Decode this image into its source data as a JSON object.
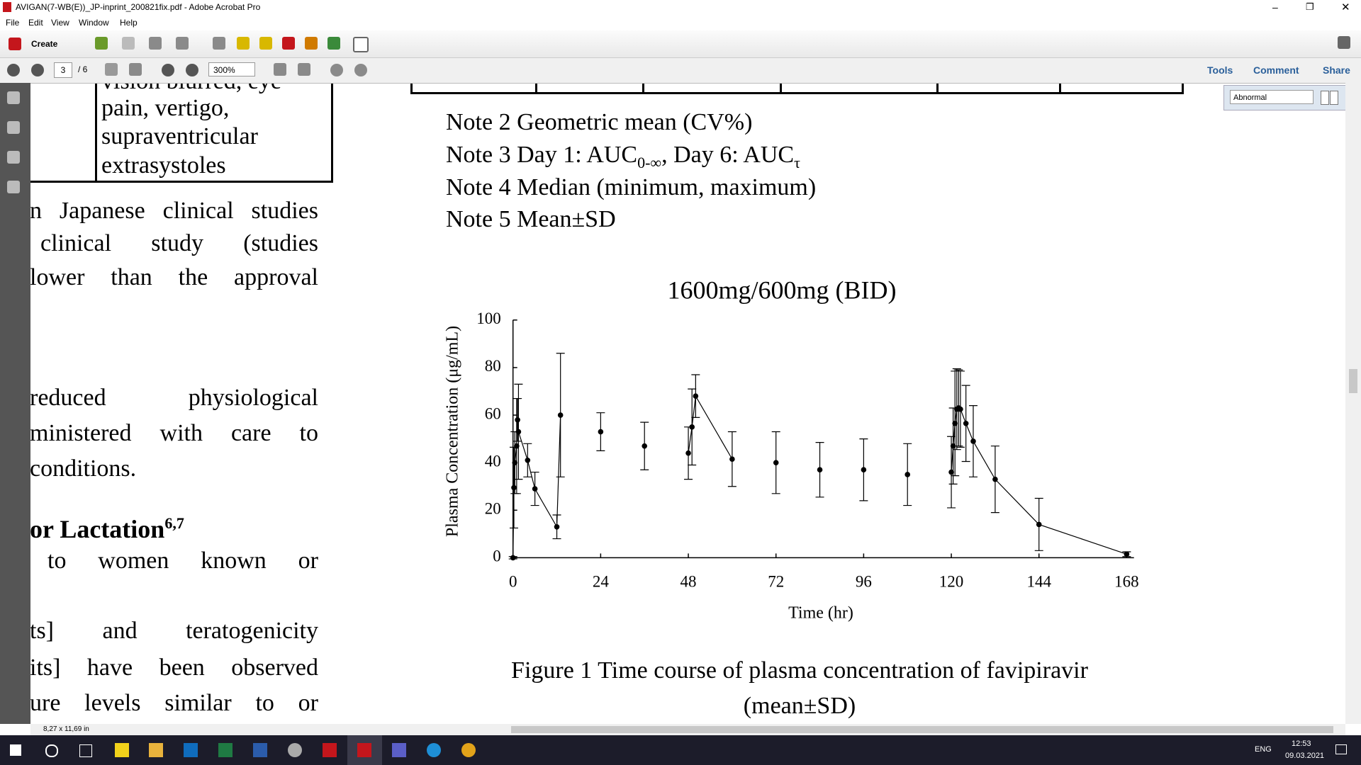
{
  "window": {
    "title": "AVIGAN(7-WB(E))_JP-inprint_200821fix.pdf - Adobe Acrobat Pro"
  },
  "menu": [
    "File",
    "Edit",
    "View",
    "Window",
    "Help"
  ],
  "toolbar": {
    "create": "Create",
    "page": "3",
    "page_total": "/ 6",
    "zoom": "300%",
    "tools": "Tools",
    "comment": "Comment",
    "share": "Share"
  },
  "find": {
    "query": "Abnormal"
  },
  "document": {
    "cell_lines": [
      "vision blurred, eye",
      "pain, vertigo,",
      "supraventricular",
      "extrasystoles"
    ],
    "left_lines": [
      "n Japanese clinical studies",
      "clinical study (studies",
      "lower than the approval",
      "reduced physiological",
      "ministered with care to",
      "conditions.",
      "to women known or",
      "ts] and teratogenicity",
      "its] have been observed",
      "ure levels similar to or"
    ],
    "heading": "or Lactation",
    "heading_ref": "6,7",
    "notes": [
      "Note 2 Geometric mean (CV%)",
      [
        "Note 3 Day 1: AUC",
        "0-∞",
        ", Day 6: AUC",
        "τ"
      ],
      "Note 4 Median (minimum, maximum)",
      "Note 5 Mean±SD"
    ],
    "caption": [
      "Figure 1 Time course of plasma concentration of favipiravir",
      "(mean±SD)"
    ]
  },
  "status": {
    "page_size": "8,27 x 11,69 in"
  },
  "taskbar": {
    "language": "ENG",
    "time": "12:53",
    "date": "09.03.2021"
  },
  "chart_data": {
    "type": "line",
    "title": "1600mg/600mg (BID)",
    "x_label": "Time (hr)",
    "y_label": "Plasma Concentration (μg/mL)",
    "xlim": [
      0,
      170
    ],
    "xticks": [
      0,
      24,
      48,
      72,
      96,
      120,
      144,
      168
    ],
    "ylim": [
      0,
      100
    ],
    "yticks": [
      0,
      20,
      40,
      60,
      80,
      100
    ],
    "color": "#000000",
    "series": [
      {
        "line": true,
        "x": [
          0,
          0.25,
          0.5,
          1,
          1.25,
          1.5,
          4,
          6,
          12,
          13
        ],
        "values": [
          0,
          29.5,
          40,
          47,
          58,
          53,
          41,
          29,
          13,
          60
        ],
        "errors": [
          0.5,
          17,
          13,
          20,
          9,
          20,
          7,
          7,
          5,
          26
        ]
      },
      {
        "line": false,
        "x": [
          24,
          36
        ],
        "values": [
          53,
          47
        ],
        "errors": [
          8,
          10
        ]
      },
      {
        "line": true,
        "x": [
          48,
          49,
          50,
          60
        ],
        "values": [
          44,
          55,
          68,
          41.5
        ],
        "errors": [
          11,
          16,
          9,
          11.5
        ]
      },
      {
        "line": false,
        "x": [
          72,
          84,
          96,
          108
        ],
        "values": [
          40,
          37,
          37,
          35
        ],
        "errors": [
          13,
          11.5,
          13,
          13
        ]
      },
      {
        "line": true,
        "x": [
          120,
          120.5,
          121,
          121.5,
          122,
          122.5,
          124,
          126,
          132,
          144,
          168
        ],
        "values": [
          36,
          47,
          56.5,
          62.5,
          63,
          62.5,
          56.5,
          49,
          33,
          14,
          1.5
        ],
        "errors": [
          15,
          16,
          22,
          17,
          16,
          16,
          16,
          15,
          14,
          11,
          1
        ]
      }
    ]
  }
}
